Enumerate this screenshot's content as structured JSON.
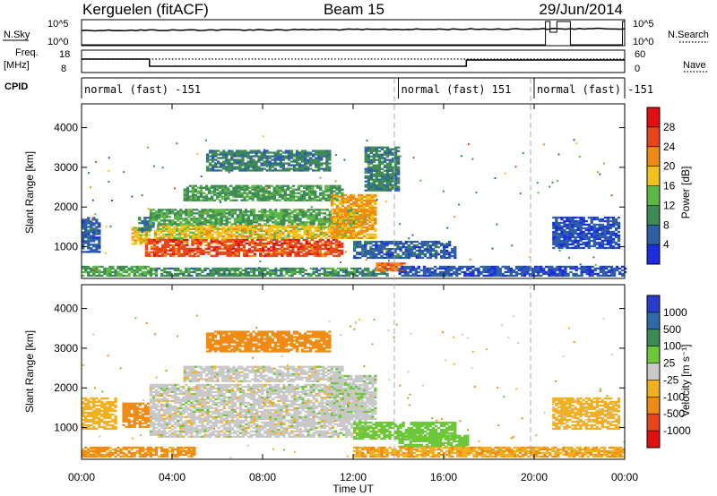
{
  "header": {
    "title": "Kerguelen (fitACF)",
    "beam": "Beam 15",
    "date": "29/Jun/2014"
  },
  "nsky_panel": {
    "label": "N.Sky",
    "right_label": "N.Search",
    "left_ticks": [
      "10^5",
      "10^0"
    ],
    "right_ticks": [
      "10^5",
      "10^0"
    ]
  },
  "freq_panel": {
    "label_top": "Freq.",
    "label_bottom": "[MHz]",
    "left_ticks": [
      "18",
      "8"
    ],
    "right_ticks": [
      "60",
      "0"
    ],
    "right_label": "Nave"
  },
  "cpid_panel": {
    "label": "CPID",
    "segments": [
      {
        "text": "normal (fast) -151",
        "start_hour": 0
      },
      {
        "text": "normal (fast) 151",
        "start_hour": 14
      },
      {
        "text": "normal (fast) -151",
        "start_hour": 20
      }
    ]
  },
  "x_axis": {
    "label": "Time UT",
    "ticks": [
      "00:00",
      "04:00",
      "08:00",
      "12:00",
      "16:00",
      "20:00",
      "00:00"
    ],
    "range_hours": [
      0,
      24
    ]
  },
  "power_colorbar": {
    "label": "Power [dB]",
    "ticks": [
      "4",
      "8",
      "12",
      "16",
      "20",
      "24",
      "28"
    ],
    "colors": [
      "#1a2de0",
      "#2e5fa6",
      "#3e8a55",
      "#5cb845",
      "#f2c21a",
      "#f08a12",
      "#e8461a",
      "#e01010"
    ]
  },
  "velocity_colorbar": {
    "label": "Velocity [m s⁻¹]",
    "ticks": [
      "1000",
      "500",
      "100",
      "25",
      "-25",
      "-100",
      "-500",
      "-1000"
    ],
    "colors": [
      "#2a3cd0",
      "#2e6aa8",
      "#3e8a55",
      "#6cc83a",
      "#c8c8c8",
      "#f2b020",
      "#f08a12",
      "#e8461a",
      "#e01010"
    ]
  },
  "chart_data": [
    {
      "type": "heatmap",
      "title": "",
      "ylabel": "Slant Range [km]",
      "xlabel": "Time UT",
      "xlim": [
        0,
        24
      ],
      "ylim": [
        200,
        4600
      ],
      "y_ticks": [
        1000,
        2000,
        3000,
        4000
      ],
      "colorbar_label": "Power [dB]",
      "colorbar_range": [
        0,
        32
      ],
      "regions": [
        {
          "t": [
            0.0,
            0.8
          ],
          "r": [
            850,
            1750
          ],
          "value": 6
        },
        {
          "t": [
            0.0,
            3.0
          ],
          "r": [
            250,
            500
          ],
          "value": 12
        },
        {
          "t": [
            2.2,
            3.0
          ],
          "r": [
            1050,
            1500
          ],
          "value": 18
        },
        {
          "t": [
            2.5,
            3.2
          ],
          "r": [
            1350,
            1750
          ],
          "value": 8
        },
        {
          "t": [
            2.8,
            11.5
          ],
          "r": [
            750,
            1200
          ],
          "value": 26
        },
        {
          "t": [
            3.2,
            12.0
          ],
          "r": [
            1200,
            1550
          ],
          "value": 18
        },
        {
          "t": [
            3.0,
            12.5
          ],
          "r": [
            1550,
            1950
          ],
          "value": 12
        },
        {
          "t": [
            4.5,
            11.5
          ],
          "r": [
            2150,
            2550
          ],
          "value": 11
        },
        {
          "t": [
            5.5,
            11.0
          ],
          "r": [
            2900,
            3400
          ],
          "value": 9
        },
        {
          "t": [
            11.0,
            13.0
          ],
          "r": [
            1200,
            2300
          ],
          "value": 21
        },
        {
          "t": [
            12.5,
            14.0
          ],
          "r": [
            2400,
            3500
          ],
          "value": 9
        },
        {
          "t": [
            3.0,
            13.5
          ],
          "r": [
            250,
            450
          ],
          "value": 10
        },
        {
          "t": [
            12.0,
            16.5
          ],
          "r": [
            700,
            1150
          ],
          "value": 6
        },
        {
          "t": [
            13.0,
            14.3
          ],
          "r": [
            380,
            600
          ],
          "value": 23
        },
        {
          "t": [
            14.0,
            24.0
          ],
          "r": [
            250,
            500
          ],
          "value": 5
        },
        {
          "t": [
            20.8,
            23.8
          ],
          "r": [
            950,
            1750
          ],
          "value": 5
        }
      ]
    },
    {
      "type": "heatmap",
      "title": "",
      "ylabel": "Slant Range [km]",
      "xlabel": "Time UT",
      "xlim": [
        0,
        24
      ],
      "ylim": [
        200,
        4600
      ],
      "y_ticks": [
        1000,
        2000,
        3000,
        4000
      ],
      "colorbar_label": "Velocity [m s⁻¹]",
      "colorbar_range": [
        -1000,
        1000
      ],
      "regions": [
        {
          "t": [
            0.0,
            1.5
          ],
          "r": [
            950,
            1750
          ],
          "value": -60
        },
        {
          "t": [
            1.8,
            3.0
          ],
          "r": [
            1000,
            1600
          ],
          "value": -400
        },
        {
          "t": [
            0.0,
            5.0
          ],
          "r": [
            250,
            500
          ],
          "value": -120
        },
        {
          "t": [
            3.0,
            12.5
          ],
          "r": [
            750,
            2100
          ],
          "value": 0
        },
        {
          "t": [
            4.5,
            11.5
          ],
          "r": [
            2150,
            2550
          ],
          "value": 0
        },
        {
          "t": [
            5.5,
            11.0
          ],
          "r": [
            2900,
            3400
          ],
          "value": -300
        },
        {
          "t": [
            11.0,
            13.0
          ],
          "r": [
            1200,
            2300
          ],
          "value": 5
        },
        {
          "t": [
            12.0,
            16.5
          ],
          "r": [
            700,
            1150
          ],
          "value": 70
        },
        {
          "t": [
            14.0,
            17.0
          ],
          "r": [
            500,
            800
          ],
          "value": 60
        },
        {
          "t": [
            12.0,
            24.0
          ],
          "r": [
            250,
            500
          ],
          "value": -90
        },
        {
          "t": [
            20.8,
            23.8
          ],
          "r": [
            950,
            1750
          ],
          "value": -50
        }
      ]
    }
  ]
}
